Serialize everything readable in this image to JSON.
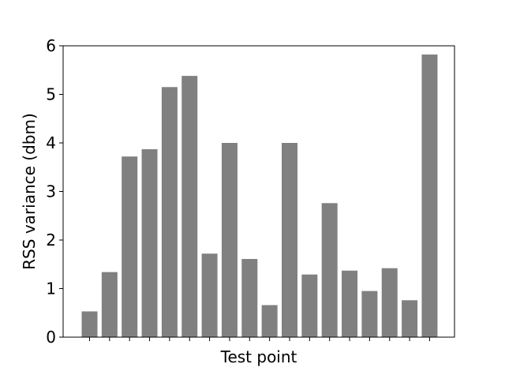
{
  "chart_data": {
    "type": "bar",
    "title": "",
    "xlabel": "Test point",
    "ylabel": "RSS variance (dbm)",
    "ylim": [
      0,
      6
    ],
    "yticks": [
      0,
      1,
      2,
      3,
      4,
      5,
      6
    ],
    "grid": false,
    "bar_color": "#808080",
    "values": [
      0.53,
      1.34,
      3.72,
      3.87,
      5.15,
      5.38,
      1.72,
      4.0,
      1.61,
      0.66,
      4.0,
      1.29,
      2.76,
      1.37,
      0.95,
      1.42,
      0.76,
      5.82
    ]
  }
}
